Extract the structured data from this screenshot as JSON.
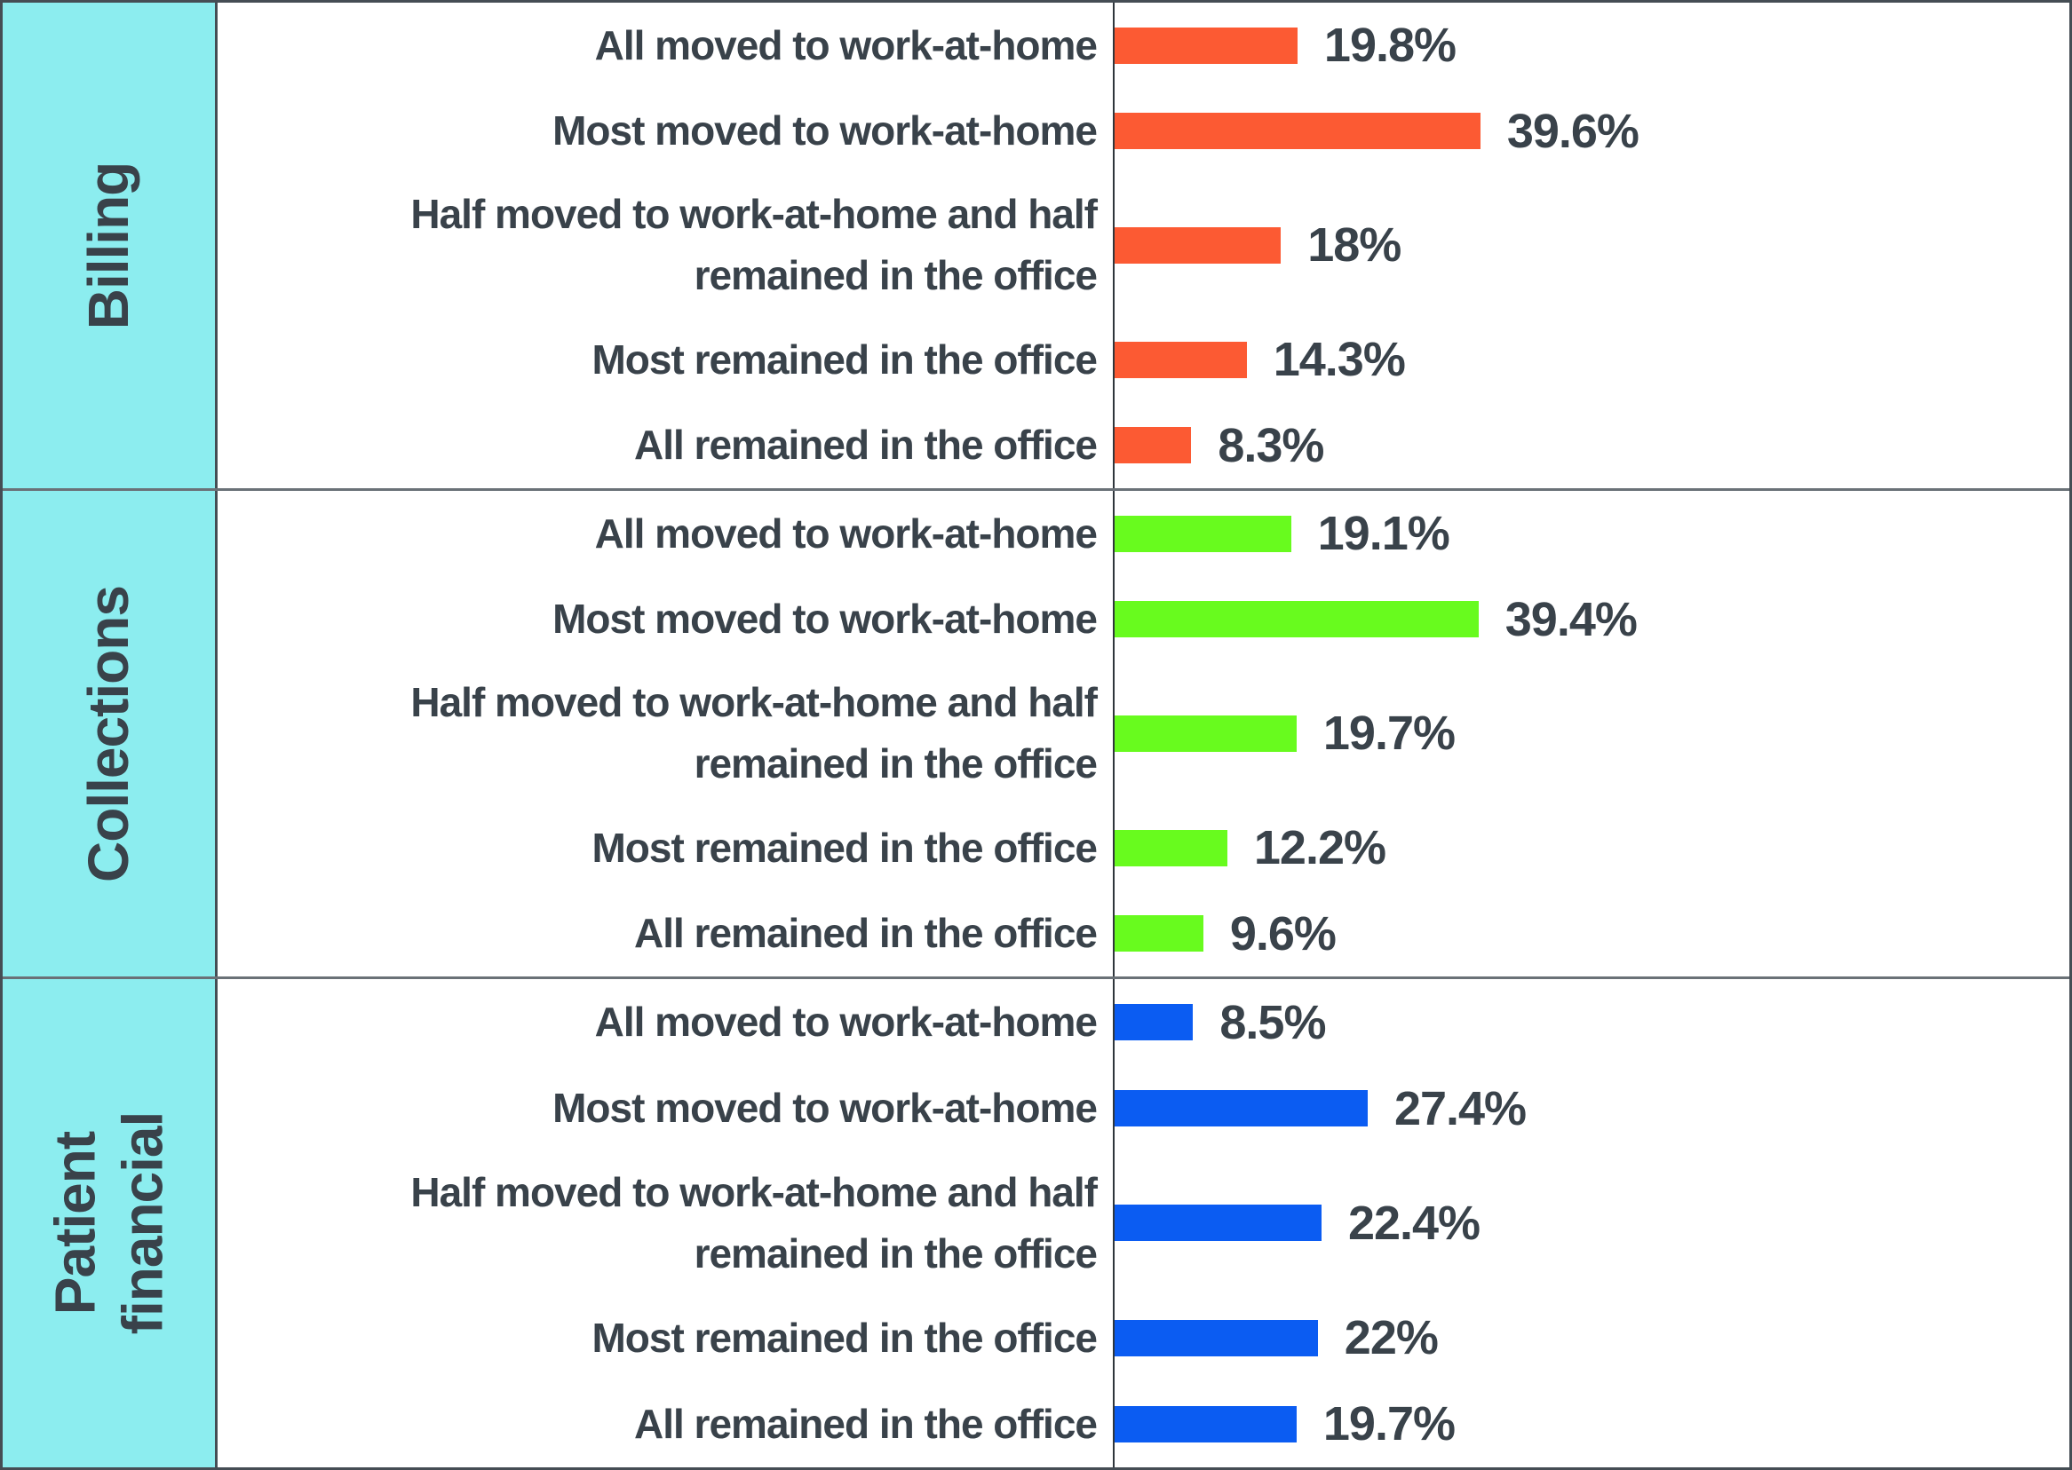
{
  "chart_data": {
    "type": "bar",
    "orientation": "horizontal",
    "title": "",
    "xlabel": "",
    "ylabel": "",
    "grid": false,
    "legend_position": "none",
    "value_suffix": "%",
    "categories": [
      "All moved to work-at-home",
      "Most moved to work-at-home",
      "Half moved to work-at-home and half remained in the office",
      "Most remained in the office",
      "All remained in the office"
    ],
    "series": [
      {
        "name": "Billing",
        "color": "#FC5A33",
        "values": [
          19.8,
          39.6,
          18,
          14.3,
          8.3
        ]
      },
      {
        "name": "Collections",
        "color": "#68FB1E",
        "values": [
          19.1,
          39.4,
          19.7,
          12.2,
          9.6
        ]
      },
      {
        "name": "Patient financial",
        "color": "#0B5CF2",
        "values": [
          8.5,
          27.4,
          22.4,
          22,
          19.7
        ]
      }
    ]
  },
  "styles": {
    "sidebar_bg": "#8CEDEF",
    "text_color": "#39424A",
    "divider_color": "#6A7177",
    "border_color": "#454D54",
    "axis_color": "#2F363C"
  },
  "sections": [
    {
      "group": "Billing",
      "group_display": "Billing",
      "color": "#FC5A33",
      "rows": [
        {
          "label": "All moved to work-at-home",
          "value": 19.8,
          "value_label": "19.8%"
        },
        {
          "label": "Most moved to work-at-home",
          "value": 39.6,
          "value_label": "39.6%"
        },
        {
          "label": "Half moved to work-at-home and half\nremained in the office",
          "value": 18,
          "value_label": "18%"
        },
        {
          "label": "Most remained in the office",
          "value": 14.3,
          "value_label": "14.3%"
        },
        {
          "label": "All remained in the office",
          "value": 8.3,
          "value_label": "8.3%"
        }
      ]
    },
    {
      "group": "Collections",
      "group_display": "Collections",
      "color": "#68FB1E",
      "rows": [
        {
          "label": "All moved to work-at-home",
          "value": 19.1,
          "value_label": "19.1%"
        },
        {
          "label": "Most moved to work-at-home",
          "value": 39.4,
          "value_label": "39.4%"
        },
        {
          "label": "Half moved to work-at-home and half\nremained in the office",
          "value": 19.7,
          "value_label": "19.7%"
        },
        {
          "label": "Most remained in the office",
          "value": 12.2,
          "value_label": "12.2%"
        },
        {
          "label": "All remained in the office",
          "value": 9.6,
          "value_label": "9.6%"
        }
      ]
    },
    {
      "group": "Patient financial",
      "group_display": "Patient\nfinancial",
      "color": "#0B5CF2",
      "rows": [
        {
          "label": "All moved to work-at-home",
          "value": 8.5,
          "value_label": "8.5%"
        },
        {
          "label": "Most moved to work-at-home",
          "value": 27.4,
          "value_label": "27.4%"
        },
        {
          "label": "Half moved to work-at-home and half\nremained in the office",
          "value": 22.4,
          "value_label": "22.4%"
        },
        {
          "label": "Most remained in the office",
          "value": 22,
          "value_label": "22%"
        },
        {
          "label": "All remained in the office",
          "value": 19.7,
          "value_label": "19.7%"
        }
      ]
    }
  ]
}
